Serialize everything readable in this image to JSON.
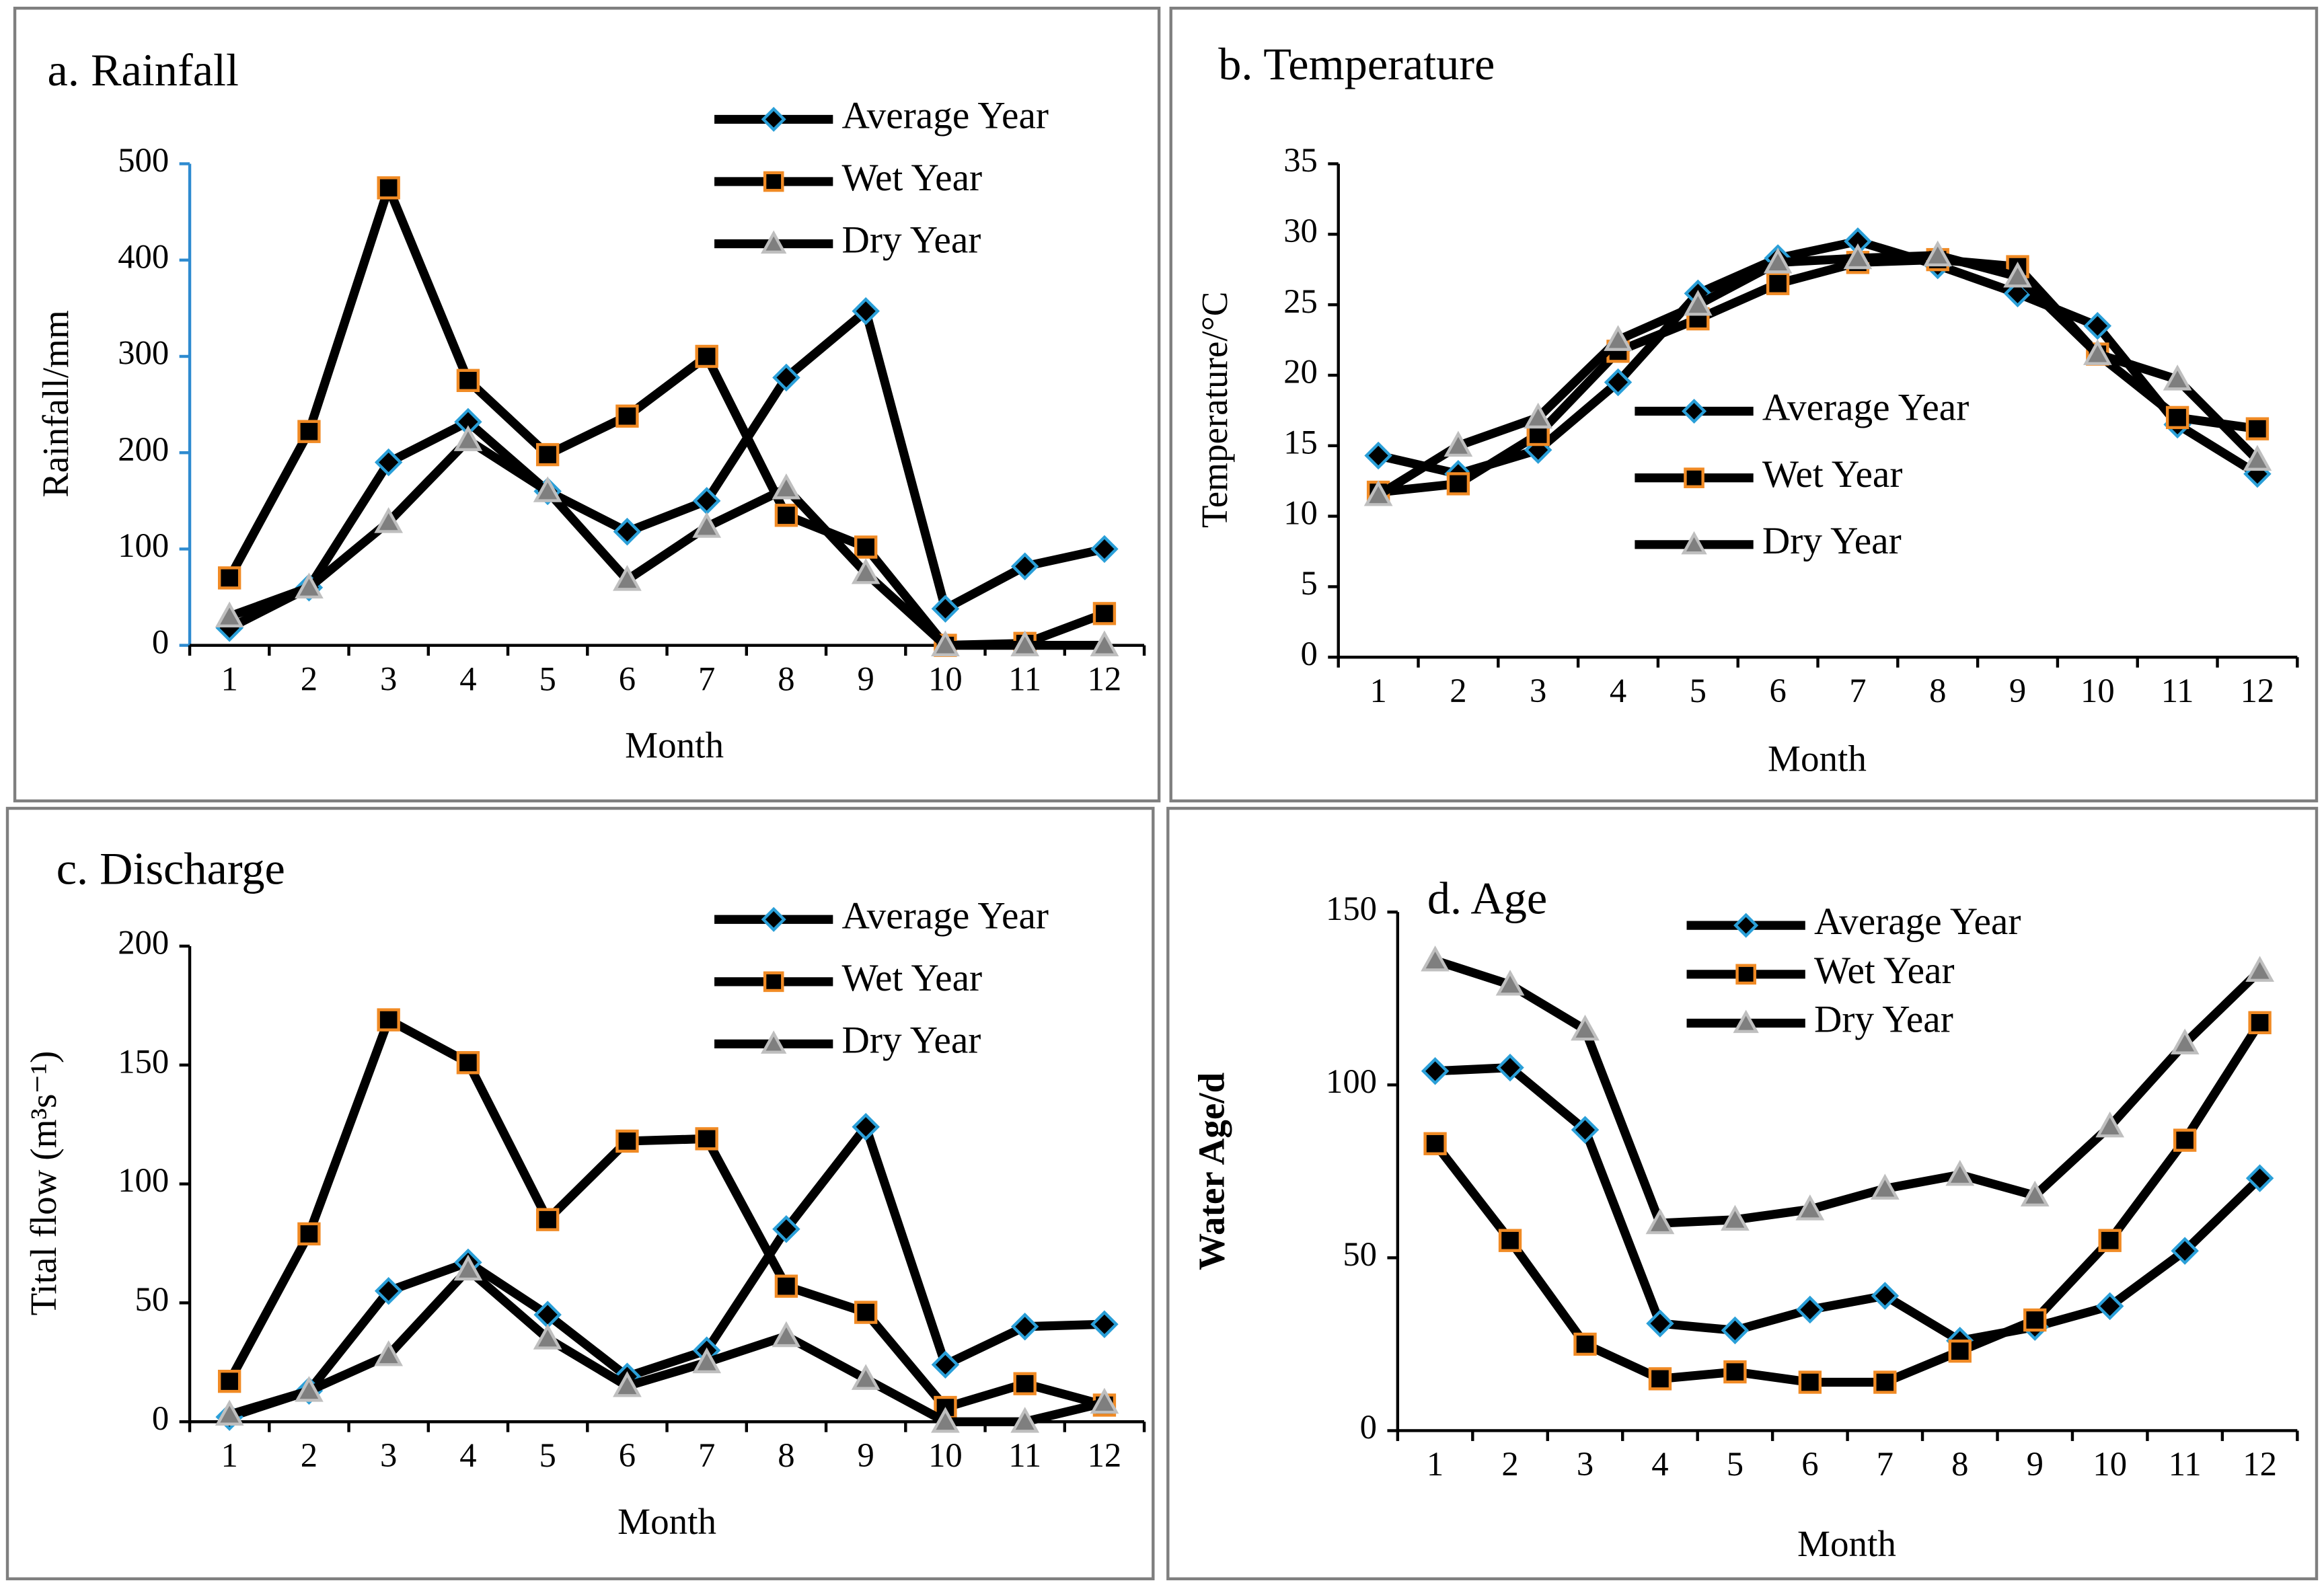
{
  "chart_data": [
    {
      "type": "line",
      "title": "a. Rainfall",
      "x_label": "Month",
      "y_label": "Rainfall/mm",
      "categories": [
        1,
        2,
        3,
        4,
        5,
        6,
        7,
        8,
        9,
        10,
        11,
        12
      ],
      "ylim": [
        0,
        500
      ],
      "yticks": [
        0,
        100,
        200,
        300,
        400,
        500
      ],
      "legend": "upper right",
      "axis_color": "#2e8bd0",
      "series": [
        {
          "name": "Average Year",
          "color": "#000000",
          "marker": "diamond",
          "marker_fill": "#000000",
          "marker_edge": "#2a9fd8",
          "values": [
            18,
            60,
            190,
            232,
            160,
            118,
            150,
            278,
            347,
            38,
            82,
            100
          ]
        },
        {
          "name": "Wet Year",
          "color": "#000000",
          "marker": "square",
          "marker_fill": "#000000",
          "marker_edge": "#f08a24",
          "values": [
            70,
            222,
            475,
            275,
            198,
            238,
            300,
            135,
            102,
            0,
            2,
            33
          ]
        },
        {
          "name": "Dry Year",
          "color": "#000000",
          "marker": "triangle",
          "marker_fill": "#7f7f7f",
          "marker_edge": "#bfbfbf",
          "values": [
            30,
            60,
            128,
            213,
            160,
            68,
            123,
            163,
            75,
            0,
            0,
            0
          ]
        }
      ]
    },
    {
      "type": "line",
      "title": "b. Temperature",
      "x_label": "Month",
      "y_label": "Temperature/°C",
      "categories": [
        1,
        2,
        3,
        4,
        5,
        6,
        7,
        8,
        9,
        10,
        11,
        12
      ],
      "ylim": [
        0,
        35
      ],
      "yticks": [
        0,
        5,
        10,
        15,
        20,
        25,
        30,
        35
      ],
      "legend": "center left",
      "axis_color": "#000000",
      "series": [
        {
          "name": "Average Year",
          "color": "#000000",
          "marker": "diamond",
          "marker_fill": "#000000",
          "marker_edge": "#2a9fd8",
          "values": [
            14.3,
            13,
            14.7,
            19.5,
            25.8,
            28.3,
            29.5,
            27.8,
            25.8,
            23.5,
            16.5,
            13
          ]
        },
        {
          "name": "Wet Year",
          "color": "#000000",
          "marker": "square",
          "marker_fill": "#000000",
          "marker_edge": "#f08a24",
          "values": [
            11.7,
            12.3,
            15.8,
            21.7,
            24,
            26.5,
            28,
            28.2,
            27.7,
            21.5,
            17,
            16.2
          ]
        },
        {
          "name": "Dry Year",
          "color": "#000000",
          "marker": "triangle",
          "marker_fill": "#7f7f7f",
          "marker_edge": "#bfbfbf",
          "values": [
            11.5,
            15,
            17,
            22.5,
            25,
            28,
            28.3,
            28.5,
            27,
            21.5,
            19.7,
            14
          ]
        }
      ]
    },
    {
      "type": "line",
      "title": "c. Discharge",
      "x_label": "Month",
      "y_label": "Tital flow (m³s⁻¹)",
      "categories": [
        1,
        2,
        3,
        4,
        5,
        6,
        7,
        8,
        9,
        10,
        11,
        12
      ],
      "ylim": [
        0,
        200
      ],
      "yticks": [
        0,
        50,
        100,
        150,
        200
      ],
      "legend": "upper right",
      "axis_color": "#000000",
      "series": [
        {
          "name": "Average Year",
          "color": "#000000",
          "marker": "diamond",
          "marker_fill": "#000000",
          "marker_edge": "#2a9fd8",
          "values": [
            2,
            13,
            55,
            67,
            45,
            19,
            30,
            81,
            124,
            24,
            40,
            41
          ]
        },
        {
          "name": "Wet Year",
          "color": "#000000",
          "marker": "square",
          "marker_fill": "#000000",
          "marker_edge": "#f08a24",
          "values": [
            17,
            79,
            169,
            151,
            85,
            118,
            119,
            57,
            46,
            6,
            16,
            7
          ]
        },
        {
          "name": "Dry Year",
          "color": "#000000",
          "marker": "triangle",
          "marker_fill": "#7f7f7f",
          "marker_edge": "#bfbfbf",
          "values": [
            3,
            13,
            28,
            64,
            35,
            15,
            25,
            36,
            18,
            0,
            0,
            8
          ]
        }
      ]
    },
    {
      "type": "line",
      "title": "d.   Age",
      "x_label": "Month",
      "y_label": "Water Age/d",
      "categories": [
        1,
        2,
        3,
        4,
        5,
        6,
        7,
        8,
        9,
        10,
        11,
        12
      ],
      "ylim": [
        0,
        150
      ],
      "yticks": [
        0,
        50,
        100,
        150
      ],
      "legend": "upper center",
      "axis_color": "#000000",
      "series": [
        {
          "name": "Average Year",
          "color": "#000000",
          "marker": "diamond",
          "marker_fill": "#000000",
          "marker_edge": "#2a9fd8",
          "values": [
            104,
            105,
            87,
            31,
            29,
            35,
            39,
            26,
            30,
            36,
            52,
            73
          ]
        },
        {
          "name": "Wet Year",
          "color": "#000000",
          "marker": "square",
          "marker_fill": "#000000",
          "marker_edge": "#f08a24",
          "values": [
            83,
            55,
            25,
            15,
            17,
            14,
            14,
            23,
            32,
            55,
            84,
            118
          ]
        },
        {
          "name": "Dry Year",
          "color": "#000000",
          "marker": "triangle",
          "marker_fill": "#7f7f7f",
          "marker_edge": "#bfbfbf",
          "values": [
            136,
            129,
            116,
            60,
            61,
            64,
            70,
            74,
            68,
            88,
            112,
            133
          ]
        }
      ]
    }
  ]
}
